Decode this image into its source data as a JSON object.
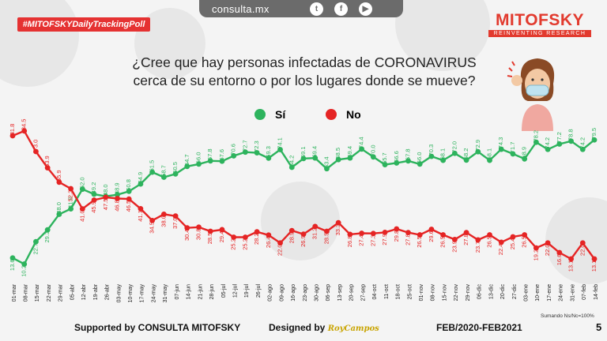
{
  "header": {
    "site": "consulta.mx",
    "hashtag": "#MITOFSKYDailyTrackingPoll",
    "brand_name": "MITOFSKY",
    "brand_tagline": "REINVENTING RESEARCH",
    "social_icons": [
      "twitter-icon",
      "facebook-icon",
      "youtube-icon"
    ]
  },
  "colors": {
    "si": "#2db35d",
    "no": "#e52424",
    "brand": "#e23a2e"
  },
  "footer": {
    "supported": "Supported by   CONSULTA   MITOFSKY",
    "designed": "Designed by",
    "designer": "RoyCampos",
    "period": "FEB/2020-FEB2021",
    "note": "Sumando Ns/Nc=100%",
    "page": "5"
  },
  "chart_data": {
    "type": "line",
    "title": "¿Cree que hay personas infectadas de CORONAVIRUS cerca de su entorno o por los lugares donde se mueve?",
    "legend_placement": "top-center",
    "categories": [
      "01-mar",
      "08-mar",
      "15-mar",
      "22-mar",
      "29-mar",
      "05-abr",
      "12-abr",
      "19-abr",
      "26-abr",
      "03-may",
      "10-may",
      "17-may",
      "24-may",
      "31-may",
      "07-jun",
      "14-jun",
      "21-jun",
      "28-jun",
      "05-jul",
      "12-jul",
      "19-jul",
      "26-jul",
      "02-ago",
      "09-ago",
      "16-ago",
      "23-ago",
      "30-ago",
      "06-sep",
      "13-sep",
      "20-sep",
      "27-sep",
      "04-oct",
      "11-oct",
      "18-oct",
      "25-oct",
      "01-nov",
      "08-nov",
      "15-nov",
      "22-nov",
      "29-nov",
      "06-dic",
      "13-dic",
      "20-dic",
      "27-dic",
      "03-ene",
      "10-ene",
      "17-ene",
      "24-ene",
      "31-ene",
      "07-feb",
      "14-feb"
    ],
    "series": [
      {
        "name": "Sí",
        "values": [
          13.6,
          10.2,
          22.7,
          29.3,
          38.0,
          41.0,
          52.0,
          49.2,
          48.0,
          48.9,
          50.8,
          54.9,
          61.5,
          58.7,
          60.5,
          64.7,
          66.0,
          67.8,
          67.6,
          70.6,
          72.7,
          72.3,
          69.3,
          74.1,
          64.2,
          69.1,
          69.4,
          63.4,
          68.5,
          69.4,
          74.4,
          70.0,
          65.7,
          66.6,
          67.8,
          66.0,
          70.3,
          68.1,
          72.0,
          68.2,
          72.9,
          68.1,
          74.3,
          71.7,
          68.9,
          78.2,
          74.2,
          77.2,
          78.8,
          74.2,
          79.5
        ]
      },
      {
        "name": "No",
        "values": [
          81.8,
          84.5,
          73.0,
          63.9,
          55.9,
          52.3,
          41.0,
          45.9,
          47.5,
          46.8,
          46.5,
          41.1,
          34.5,
          38.0,
          37.0,
          30.4,
          30.8,
          28.5,
          29.4,
          25.2,
          25.2,
          28.2,
          26.4,
          22.0,
          28.9,
          26.9,
          31.2,
          28.5,
          33.3,
          26.8,
          27.4,
          27.3,
          27.9,
          29.8,
          27.8,
          26.5,
          29.6,
          26.5,
          23.9,
          27.8,
          23.7,
          26.5,
          22.4,
          25.4,
          26.5,
          19.2,
          22.0,
          16.6,
          13.1,
          22.0,
          13.1
        ]
      }
    ],
    "ylim": [
      0,
      100
    ],
    "grid": false
  }
}
